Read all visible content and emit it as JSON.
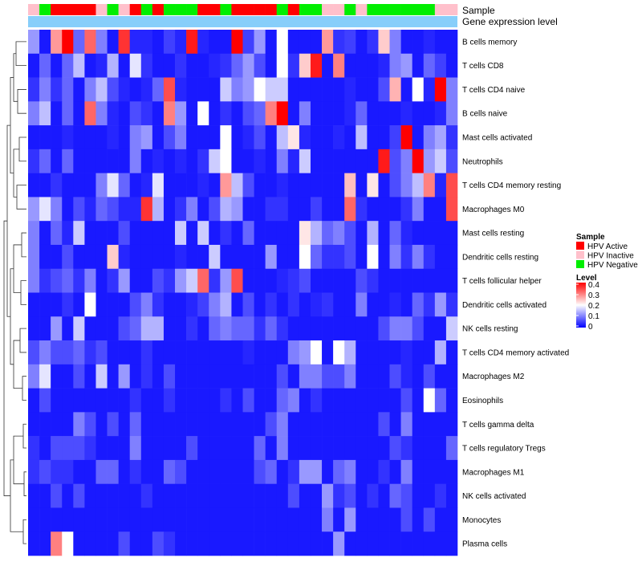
{
  "chart_data": {
    "type": "heatmap",
    "annotation_rows": [
      "Sample",
      "Gene expression level"
    ],
    "sample_groups": [
      "I",
      "N",
      "A",
      "A",
      "A",
      "A",
      "I",
      "N",
      "I",
      "A",
      "N",
      "A",
      "N",
      "N",
      "N",
      "A",
      "A",
      "N",
      "A",
      "A",
      "A",
      "A",
      "N",
      "A",
      "N",
      "N",
      "I",
      "I",
      "N",
      "I",
      "N",
      "N",
      "N",
      "N",
      "N",
      "N",
      "I",
      "I"
    ],
    "legend_sample": {
      "title": "Sample",
      "entries": [
        {
          "key": "A",
          "label": "HPV Active",
          "color": "#ff0000"
        },
        {
          "key": "I",
          "label": "HPV Inactive",
          "color": "#ffc0cb"
        },
        {
          "key": "N",
          "label": "HPV Negative",
          "color": "#00ee00"
        }
      ]
    },
    "legend_level": {
      "title": "Level",
      "ticks": [
        "0.4",
        "0.3",
        "0.2",
        "0.1",
        "0"
      ],
      "range": [
        0,
        0.4
      ],
      "colors": [
        "#0000ff",
        "#ffffff",
        "#ff0000"
      ]
    },
    "rows": [
      "B cells memory",
      "T cells CD8",
      "T cells CD4 naive",
      "B cells naive",
      "Mast cells activated",
      "Neutrophils",
      "T cells CD4 memory resting",
      "Macrophages M0",
      "Mast cells resting",
      "Dendritic cells resting",
      "T cells follicular helper",
      "Dendritic cells activated",
      "NK cells resting",
      "T cells CD4 memory activated",
      "Macrophages M2",
      "Eosinophils",
      "T cells gamma delta",
      "T cells regulatory  Tregs",
      "Macrophages M1",
      "NK cells activated",
      "Monocytes",
      "Plasma cells"
    ],
    "values": [
      [
        0.12,
        0.02,
        0.28,
        0.4,
        0.08,
        0.32,
        0.1,
        0.02,
        0.36,
        0.03,
        0.03,
        0.02,
        0.05,
        0.03,
        0.38,
        0.03,
        0.02,
        0.02,
        0.4,
        0.05,
        0.12,
        0.02,
        0.2,
        0.02,
        0.02,
        0.02,
        0.28,
        0.04,
        0.05,
        0.02,
        0.04,
        0.24,
        0.1,
        0.02,
        0.02,
        0.03,
        0.02,
        0.02
      ],
      [
        0.02,
        0.08,
        0.02,
        0.08,
        0.15,
        0.02,
        0.03,
        0.14,
        0.02,
        0.18,
        0.04,
        0.02,
        0.02,
        0.04,
        0.02,
        0.02,
        0.03,
        0.04,
        0.08,
        0.12,
        0.06,
        0.02,
        0.2,
        0.04,
        0.24,
        0.38,
        0.02,
        0.3,
        0.02,
        0.02,
        0.02,
        0.03,
        0.1,
        0.12,
        0.02,
        0.08,
        0.05,
        0.02
      ],
      [
        0.04,
        0.1,
        0.04,
        0.08,
        0.02,
        0.1,
        0.15,
        0.06,
        0.03,
        0.02,
        0.03,
        0.08,
        0.34,
        0.03,
        0.02,
        0.02,
        0.02,
        0.16,
        0.1,
        0.12,
        0.2,
        0.16,
        0.16,
        0.02,
        0.02,
        0.02,
        0.02,
        0.02,
        0.03,
        0.02,
        0.02,
        0.06,
        0.26,
        0.02,
        0.2,
        0.03,
        0.4,
        0.1
      ],
      [
        0.1,
        0.15,
        0.02,
        0.08,
        0.02,
        0.32,
        0.1,
        0.03,
        0.02,
        0.06,
        0.04,
        0.02,
        0.3,
        0.12,
        0.02,
        0.2,
        0.02,
        0.04,
        0.02,
        0.06,
        0.08,
        0.3,
        0.4,
        0.02,
        0.1,
        0.02,
        0.02,
        0.02,
        0.03,
        0.08,
        0.02,
        0.02,
        0.02,
        0.03,
        0.02,
        0.02,
        0.03,
        0.1
      ],
      [
        0.02,
        0.02,
        0.02,
        0.03,
        0.02,
        0.02,
        0.02,
        0.03,
        0.02,
        0.1,
        0.12,
        0.02,
        0.06,
        0.1,
        0.02,
        0.02,
        0.02,
        0.2,
        0.02,
        0.03,
        0.06,
        0.02,
        0.15,
        0.22,
        0.03,
        0.02,
        0.02,
        0.03,
        0.02,
        0.15,
        0.02,
        0.02,
        0.05,
        0.4,
        0.02,
        0.1,
        0.13,
        0.04
      ],
      [
        0.04,
        0.08,
        0.02,
        0.08,
        0.02,
        0.02,
        0.02,
        0.02,
        0.02,
        0.1,
        0.02,
        0.03,
        0.02,
        0.03,
        0.02,
        0.04,
        0.16,
        0.2,
        0.02,
        0.02,
        0.03,
        0.02,
        0.1,
        0.03,
        0.16,
        0.02,
        0.02,
        0.02,
        0.02,
        0.02,
        0.02,
        0.38,
        0.06,
        0.1,
        0.4,
        0.12,
        0.16,
        0.06
      ],
      [
        0.02,
        0.02,
        0.04,
        0.02,
        0.02,
        0.02,
        0.1,
        0.18,
        0.08,
        0.02,
        0.03,
        0.18,
        0.02,
        0.02,
        0.02,
        0.03,
        0.02,
        0.28,
        0.15,
        0.06,
        0.02,
        0.02,
        0.03,
        0.02,
        0.02,
        0.02,
        0.02,
        0.02,
        0.25,
        0.02,
        0.22,
        0.02,
        0.06,
        0.1,
        0.15,
        0.3,
        0.03,
        0.34
      ],
      [
        0.12,
        0.18,
        0.1,
        0.02,
        0.06,
        0.03,
        0.08,
        0.06,
        0.03,
        0.03,
        0.36,
        0.14,
        0.02,
        0.04,
        0.1,
        0.02,
        0.06,
        0.14,
        0.12,
        0.02,
        0.02,
        0.04,
        0.04,
        0.02,
        0.02,
        0.05,
        0.02,
        0.02,
        0.32,
        0.04,
        0.02,
        0.02,
        0.02,
        0.04,
        0.1,
        0.02,
        0.02,
        0.34
      ],
      [
        0.1,
        0.02,
        0.08,
        0.03,
        0.16,
        0.02,
        0.02,
        0.02,
        0.06,
        0.02,
        0.02,
        0.02,
        0.02,
        0.16,
        0.02,
        0.16,
        0.02,
        0.04,
        0.02,
        0.08,
        0.02,
        0.02,
        0.02,
        0.02,
        0.22,
        0.14,
        0.08,
        0.1,
        0.06,
        0.02,
        0.14,
        0.02,
        0.08,
        0.03,
        0.02,
        0.02,
        0.02,
        0.02
      ],
      [
        0.1,
        0.02,
        0.02,
        0.06,
        0.02,
        0.02,
        0.02,
        0.24,
        0.03,
        0.02,
        0.02,
        0.02,
        0.02,
        0.03,
        0.02,
        0.02,
        0.16,
        0.02,
        0.02,
        0.02,
        0.02,
        0.12,
        0.02,
        0.02,
        0.2,
        0.08,
        0.04,
        0.04,
        0.06,
        0.02,
        0.2,
        0.02,
        0.1,
        0.04,
        0.1,
        0.04,
        0.02,
        0.02
      ],
      [
        0.1,
        0.04,
        0.06,
        0.08,
        0.04,
        0.1,
        0.02,
        0.04,
        0.12,
        0.02,
        0.02,
        0.06,
        0.04,
        0.12,
        0.16,
        0.32,
        0.04,
        0.12,
        0.34,
        0.02,
        0.02,
        0.02,
        0.03,
        0.04,
        0.06,
        0.02,
        0.02,
        0.02,
        0.02,
        0.06,
        0.04,
        0.02,
        0.02,
        0.02,
        0.02,
        0.02,
        0.02,
        0.02
      ],
      [
        0.02,
        0.02,
        0.02,
        0.04,
        0.02,
        0.2,
        0.02,
        0.02,
        0.02,
        0.06,
        0.1,
        0.04,
        0.02,
        0.02,
        0.03,
        0.05,
        0.1,
        0.14,
        0.02,
        0.06,
        0.02,
        0.04,
        0.02,
        0.04,
        0.02,
        0.03,
        0.04,
        0.02,
        0.02,
        0.1,
        0.02,
        0.02,
        0.03,
        0.02,
        0.08,
        0.04,
        0.12,
        0.04
      ],
      [
        0.02,
        0.02,
        0.12,
        0.02,
        0.16,
        0.02,
        0.02,
        0.02,
        0.06,
        0.08,
        0.14,
        0.14,
        0.02,
        0.02,
        0.04,
        0.02,
        0.08,
        0.1,
        0.08,
        0.08,
        0.04,
        0.08,
        0.04,
        0.02,
        0.02,
        0.02,
        0.02,
        0.02,
        0.02,
        0.02,
        0.02,
        0.06,
        0.1,
        0.1,
        0.06,
        0.02,
        0.02,
        0.16
      ],
      [
        0.06,
        0.1,
        0.06,
        0.06,
        0.08,
        0.04,
        0.06,
        0.02,
        0.02,
        0.02,
        0.04,
        0.02,
        0.02,
        0.02,
        0.02,
        0.02,
        0.02,
        0.02,
        0.02,
        0.03,
        0.02,
        0.02,
        0.02,
        0.1,
        0.12,
        0.2,
        0.02,
        0.2,
        0.14,
        0.02,
        0.02,
        0.02,
        0.02,
        0.03,
        0.02,
        0.02,
        0.14,
        0.02
      ],
      [
        0.1,
        0.18,
        0.02,
        0.02,
        0.06,
        0.02,
        0.16,
        0.02,
        0.12,
        0.02,
        0.04,
        0.02,
        0.06,
        0.02,
        0.02,
        0.02,
        0.02,
        0.02,
        0.02,
        0.02,
        0.02,
        0.02,
        0.06,
        0.02,
        0.1,
        0.1,
        0.06,
        0.06,
        0.1,
        0.02,
        0.02,
        0.02,
        0.06,
        0.03,
        0.02,
        0.06,
        0.02,
        0.02
      ],
      [
        0.02,
        0.06,
        0.02,
        0.02,
        0.02,
        0.02,
        0.02,
        0.02,
        0.02,
        0.04,
        0.02,
        0.02,
        0.04,
        0.02,
        0.02,
        0.02,
        0.02,
        0.04,
        0.02,
        0.06,
        0.02,
        0.02,
        0.08,
        0.1,
        0.02,
        0.04,
        0.02,
        0.02,
        0.02,
        0.02,
        0.02,
        0.02,
        0.02,
        0.06,
        0.02,
        0.2,
        0.08,
        0.02
      ],
      [
        0.02,
        0.02,
        0.02,
        0.02,
        0.1,
        0.06,
        0.02,
        0.06,
        0.02,
        0.08,
        0.02,
        0.02,
        0.02,
        0.02,
        0.02,
        0.02,
        0.02,
        0.02,
        0.02,
        0.02,
        0.02,
        0.06,
        0.1,
        0.02,
        0.02,
        0.02,
        0.02,
        0.02,
        0.02,
        0.02,
        0.02,
        0.06,
        0.02,
        0.1,
        0.02,
        0.02,
        0.02,
        0.02
      ],
      [
        0.04,
        0.02,
        0.06,
        0.06,
        0.06,
        0.04,
        0.02,
        0.02,
        0.02,
        0.1,
        0.02,
        0.02,
        0.02,
        0.02,
        0.06,
        0.02,
        0.02,
        0.02,
        0.02,
        0.02,
        0.08,
        0.02,
        0.1,
        0.02,
        0.02,
        0.02,
        0.02,
        0.02,
        0.02,
        0.02,
        0.02,
        0.02,
        0.06,
        0.04,
        0.02,
        0.02,
        0.02,
        0.08
      ],
      [
        0.04,
        0.06,
        0.04,
        0.04,
        0.02,
        0.02,
        0.08,
        0.08,
        0.02,
        0.04,
        0.02,
        0.02,
        0.08,
        0.06,
        0.02,
        0.02,
        0.02,
        0.02,
        0.02,
        0.02,
        0.06,
        0.08,
        0.02,
        0.04,
        0.12,
        0.12,
        0.02,
        0.08,
        0.1,
        0.02,
        0.02,
        0.04,
        0.02,
        0.1,
        0.02,
        0.02,
        0.02,
        0.02
      ],
      [
        0.02,
        0.02,
        0.06,
        0.02,
        0.06,
        0.02,
        0.02,
        0.02,
        0.02,
        0.02,
        0.04,
        0.02,
        0.02,
        0.02,
        0.02,
        0.02,
        0.02,
        0.02,
        0.02,
        0.02,
        0.02,
        0.02,
        0.02,
        0.06,
        0.02,
        0.02,
        0.12,
        0.04,
        0.06,
        0.02,
        0.04,
        0.02,
        0.08,
        0.06,
        0.02,
        0.02,
        0.04,
        0.02
      ],
      [
        0.02,
        0.02,
        0.02,
        0.02,
        0.02,
        0.02,
        0.02,
        0.02,
        0.02,
        0.02,
        0.02,
        0.02,
        0.02,
        0.02,
        0.02,
        0.02,
        0.02,
        0.02,
        0.02,
        0.02,
        0.02,
        0.02,
        0.02,
        0.02,
        0.02,
        0.02,
        0.1,
        0.02,
        0.12,
        0.02,
        0.02,
        0.02,
        0.02,
        0.06,
        0.02,
        0.06,
        0.02,
        0.02
      ],
      [
        0.02,
        0.02,
        0.3,
        0.2,
        0.02,
        0.02,
        0.02,
        0.02,
        0.06,
        0.02,
        0.02,
        0.06,
        0.04,
        0.02,
        0.02,
        0.02,
        0.02,
        0.02,
        0.02,
        0.02,
        0.02,
        0.02,
        0.02,
        0.02,
        0.02,
        0.02,
        0.02,
        0.12,
        0.02,
        0.02,
        0.02,
        0.02,
        0.02,
        0.02,
        0.02,
        0.02,
        0.02,
        0.02
      ]
    ]
  }
}
